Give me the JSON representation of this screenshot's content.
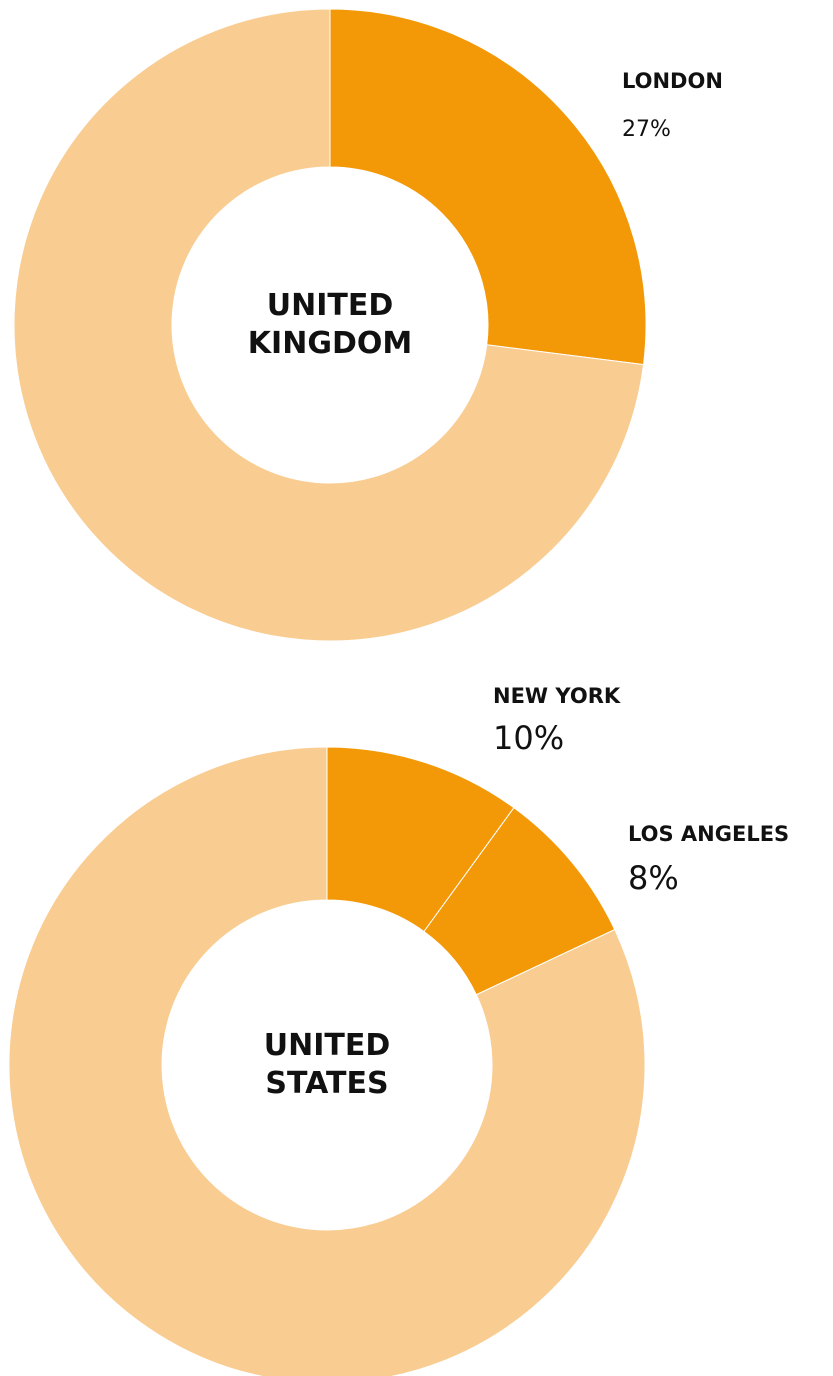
{
  "chart_data": [
    {
      "type": "pie",
      "title": "UNITED KINGDOM",
      "categories": [
        "LONDON",
        null
      ],
      "values": [
        27,
        73
      ],
      "value_labels": [
        "27%",
        null
      ],
      "colors": [
        "#f39806",
        "#f9cc91"
      ]
    },
    {
      "type": "pie",
      "title": "UNITED STATES",
      "categories": [
        "NEW YORK",
        "LOS ANGELES",
        null
      ],
      "values": [
        10,
        8,
        82
      ],
      "value_labels": [
        "10%",
        "8%",
        null
      ],
      "colors": [
        "#f39806",
        "#f39806",
        "#f9cc91"
      ]
    }
  ]
}
